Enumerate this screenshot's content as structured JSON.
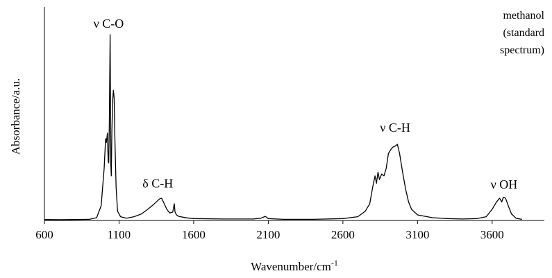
{
  "chart_data": {
    "type": "line",
    "xlabel": "Wavenumber/cm",
    "xlabel_sup": "-1",
    "ylabel": "Absorbance/a.u.",
    "xlim": [
      600,
      3950
    ],
    "ylim": [
      0,
      1.0
    ],
    "x_ticks": [
      600,
      1100,
      1600,
      2100,
      2600,
      3100,
      3600
    ],
    "grid": false,
    "series_label": [
      "methanol",
      "(standard",
      "spectrum)"
    ],
    "annotations": [
      {
        "text": "ν C-O",
        "x": 1030,
        "y": 1.0
      },
      {
        "text": "δ C-H",
        "x": 1360,
        "y": 0.14
      },
      {
        "text": "ν C-H",
        "x": 2950,
        "y": 0.44
      },
      {
        "text": "ν OH",
        "x": 3680,
        "y": 0.135
      }
    ],
    "series": [
      {
        "values": [
          [
            600,
            0.005
          ],
          [
            700,
            0.004
          ],
          [
            800,
            0.005
          ],
          [
            900,
            0.006
          ],
          [
            950,
            0.015
          ],
          [
            980,
            0.08
          ],
          [
            1000,
            0.28
          ],
          [
            1010,
            0.44
          ],
          [
            1015,
            0.42
          ],
          [
            1022,
            0.47
          ],
          [
            1027,
            0.32
          ],
          [
            1031,
            0.31
          ],
          [
            1035,
            0.54
          ],
          [
            1040,
            1.0
          ],
          [
            1045,
            0.3
          ],
          [
            1048,
            0.24
          ],
          [
            1052,
            0.48
          ],
          [
            1057,
            0.64
          ],
          [
            1062,
            0.7
          ],
          [
            1067,
            0.66
          ],
          [
            1072,
            0.45
          ],
          [
            1080,
            0.18
          ],
          [
            1090,
            0.05
          ],
          [
            1110,
            0.02
          ],
          [
            1150,
            0.012
          ],
          [
            1200,
            0.02
          ],
          [
            1250,
            0.035
          ],
          [
            1300,
            0.065
          ],
          [
            1330,
            0.085
          ],
          [
            1350,
            0.1
          ],
          [
            1370,
            0.115
          ],
          [
            1385,
            0.12
          ],
          [
            1400,
            0.095
          ],
          [
            1420,
            0.06
          ],
          [
            1440,
            0.04
          ],
          [
            1460,
            0.045
          ],
          [
            1470,
            0.09
          ],
          [
            1475,
            0.045
          ],
          [
            1485,
            0.03
          ],
          [
            1500,
            0.022
          ],
          [
            1550,
            0.014
          ],
          [
            1600,
            0.01
          ],
          [
            1800,
            0.008
          ],
          [
            2000,
            0.008
          ],
          [
            2050,
            0.012
          ],
          [
            2080,
            0.022
          ],
          [
            2100,
            0.01
          ],
          [
            2200,
            0.006
          ],
          [
            2400,
            0.006
          ],
          [
            2600,
            0.01
          ],
          [
            2700,
            0.02
          ],
          [
            2750,
            0.05
          ],
          [
            2780,
            0.09
          ],
          [
            2800,
            0.18
          ],
          [
            2815,
            0.24
          ],
          [
            2825,
            0.2
          ],
          [
            2835,
            0.26
          ],
          [
            2845,
            0.22
          ],
          [
            2860,
            0.25
          ],
          [
            2875,
            0.24
          ],
          [
            2890,
            0.28
          ],
          [
            2905,
            0.36
          ],
          [
            2920,
            0.38
          ],
          [
            2935,
            0.395
          ],
          [
            2950,
            0.4
          ],
          [
            2965,
            0.41
          ],
          [
            2980,
            0.36
          ],
          [
            3000,
            0.26
          ],
          [
            3020,
            0.17
          ],
          [
            3040,
            0.1
          ],
          [
            3060,
            0.06
          ],
          [
            3100,
            0.03
          ],
          [
            3200,
            0.015
          ],
          [
            3300,
            0.01
          ],
          [
            3400,
            0.008
          ],
          [
            3500,
            0.01
          ],
          [
            3560,
            0.02
          ],
          [
            3600,
            0.06
          ],
          [
            3630,
            0.1
          ],
          [
            3650,
            0.12
          ],
          [
            3665,
            0.1
          ],
          [
            3675,
            0.125
          ],
          [
            3690,
            0.12
          ],
          [
            3710,
            0.075
          ],
          [
            3730,
            0.035
          ],
          [
            3760,
            0.012
          ],
          [
            3800,
            0.006
          ]
        ]
      }
    ]
  }
}
